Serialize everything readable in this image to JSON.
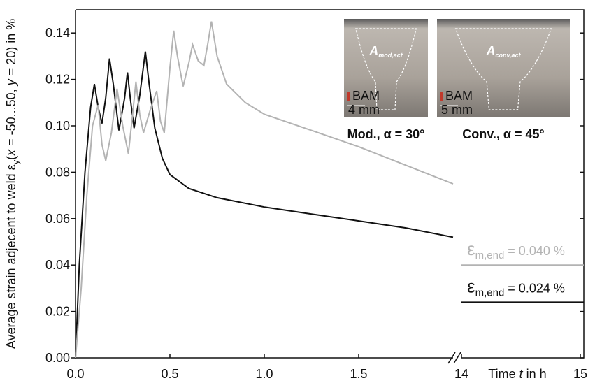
{
  "chart_data": {
    "type": "line",
    "ylabel": [
      "Average strain adjecent to weld ε",
      "y",
      "(",
      "x",
      " = -50...50, ",
      "y",
      " = 20) in %"
    ],
    "xlabel": [
      "Time ",
      "t",
      " in h"
    ],
    "xlim": [
      0,
      2
    ],
    "x2lim": [
      14,
      15
    ],
    "xticks": [
      {
        "value": 0,
        "label": "0.0"
      },
      0.5,
      {
        "value": 1,
        "label": "1.0"
      },
      1.5
    ],
    "x2ticks": [
      14,
      15
    ],
    "ylim": [
      0,
      0.15
    ],
    "yticks": [
      {
        "value": 0,
        "label": "0.00"
      },
      {
        "value": 0.02,
        "label": "0.02"
      },
      {
        "value": 0.04,
        "label": "0.04"
      },
      {
        "value": 0.06,
        "label": "0.06"
      },
      {
        "value": 0.08,
        "label": "0.08"
      },
      {
        "value": 0.1,
        "label": "0.10"
      },
      {
        "value": 0.12,
        "label": "0.12"
      },
      {
        "value": 0.14,
        "label": "0.14"
      }
    ],
    "series": [
      {
        "color": "#111111",
        "x": [
          0,
          0.02,
          0.05,
          0.08,
          0.1,
          0.12,
          0.14,
          0.16,
          0.18,
          0.2,
          0.23,
          0.26,
          0.275,
          0.29,
          0.31,
          0.34,
          0.37,
          0.39,
          0.42,
          0.46,
          0.5,
          0.6,
          0.75,
          1.0,
          1.25,
          1.5,
          1.75,
          2.0
        ],
        "values": [
          0,
          0.04,
          0.08,
          0.108,
          0.118,
          0.108,
          0.101,
          0.112,
          0.129,
          0.118,
          0.098,
          0.112,
          0.123,
          0.112,
          0.099,
          0.113,
          0.132,
          0.118,
          0.099,
          0.086,
          0.079,
          0.073,
          0.069,
          0.065,
          0.062,
          0.059,
          0.056,
          0.052
        ],
        "end_value": 0.024,
        "end_label": {
          "symbol": "ε",
          "sub": "m,end",
          "text": " = 0.024 %"
        }
      },
      {
        "color": "#b3b3b3",
        "x": [
          0,
          0.03,
          0.06,
          0.09,
          0.12,
          0.14,
          0.16,
          0.19,
          0.22,
          0.25,
          0.28,
          0.3,
          0.32,
          0.34,
          0.36,
          0.4,
          0.43,
          0.45,
          0.47,
          0.5,
          0.52,
          0.54,
          0.57,
          0.6,
          0.62,
          0.65,
          0.68,
          0.7,
          0.72,
          0.75,
          0.8,
          0.9,
          1.0,
          1.25,
          1.5,
          1.75,
          2.0
        ],
        "values": [
          0,
          0.03,
          0.07,
          0.1,
          0.109,
          0.092,
          0.085,
          0.097,
          0.116,
          0.1,
          0.088,
          0.103,
          0.119,
          0.105,
          0.097,
          0.108,
          0.115,
          0.102,
          0.097,
          0.125,
          0.141,
          0.13,
          0.117,
          0.127,
          0.135,
          0.128,
          0.126,
          0.135,
          0.145,
          0.13,
          0.118,
          0.11,
          0.105,
          0.098,
          0.091,
          0.083,
          0.075
        ],
        "end_value": 0.04,
        "end_label": {
          "symbol": "ε",
          "sub": "m,end",
          "text": " = 0.040 %"
        }
      }
    ],
    "insets": [
      {
        "area": "A",
        "area_sub": "mod,act",
        "logo": "BAM",
        "scale": "4 mm",
        "caption": "Mod., α = 30°"
      },
      {
        "area": "A",
        "area_sub": "conv,act",
        "logo": "BAM",
        "scale": "5 mm",
        "caption": "Conv., α = 45°"
      }
    ]
  }
}
